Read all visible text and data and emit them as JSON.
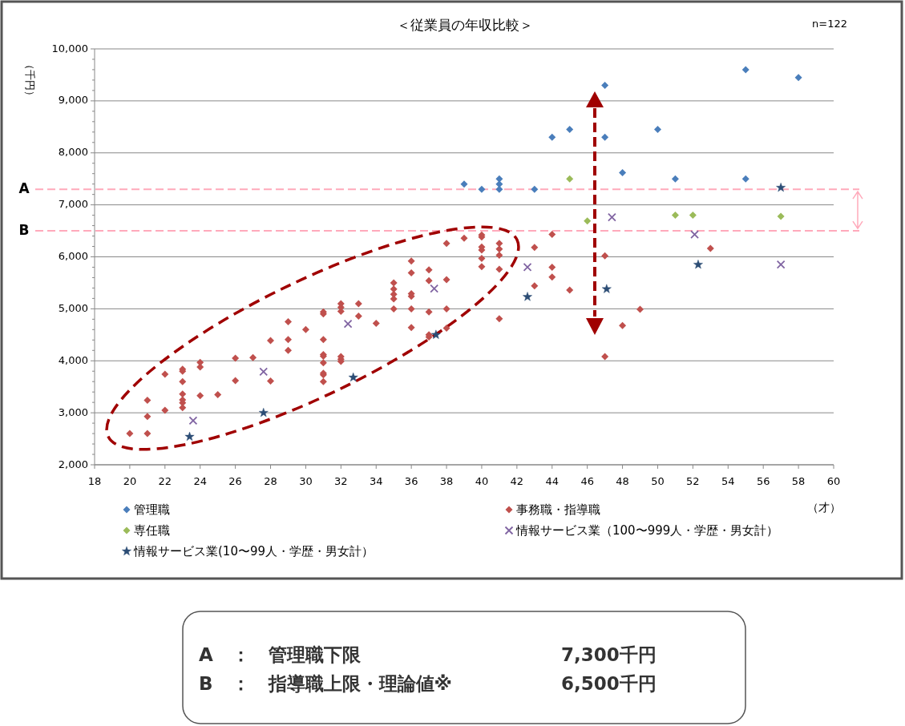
{
  "chart_data": {
    "type": "scatter",
    "title": "＜従業員の年収比較＞",
    "xlabel": "（才）",
    "ylabel": "（千円）",
    "annotations": [
      "n=122",
      "A　：　管理職下限",
      "7,300千円",
      "B　：　指導職上限・理論値※",
      "6,500千円"
    ],
    "xlim": [
      18,
      60
    ],
    "ylim": [
      2000,
      10000
    ],
    "xticks": [
      18,
      20,
      22,
      24,
      26,
      28,
      30,
      32,
      34,
      36,
      38,
      40,
      42,
      44,
      46,
      48,
      50,
      52,
      54,
      56,
      58,
      60
    ],
    "yticks": [
      {
        "value": 2000,
        "label": "2,000"
      },
      {
        "value": 3000,
        "label": "3,000"
      },
      {
        "value": 4000,
        "label": "4,000"
      },
      {
        "value": 5000,
        "label": "5,000"
      },
      {
        "value": 6000,
        "label": "6,000"
      },
      {
        "value": 7000,
        "label": "7,000"
      },
      {
        "value": 8000,
        "label": "8,000"
      },
      {
        "value": 9000,
        "label": "9,000"
      },
      {
        "value": 10000,
        "label": "10,000"
      }
    ],
    "grid": "y",
    "legend": "bottom",
    "ref_lines": [
      {
        "axis": "y",
        "value": 7300,
        "label": "A",
        "color": "#ffaabb",
        "line_style": "dashed"
      },
      {
        "axis": "y",
        "value": 6500,
        "label": "B",
        "color": "#ffaabb",
        "line_style": "dashed"
      }
    ],
    "series": [
      {
        "name": "管理職",
        "color": "#4a7ebb",
        "marker": "diamond",
        "x": [
          39,
          40,
          41,
          41,
          41,
          43,
          44,
          45,
          47,
          47,
          48,
          50,
          51,
          55,
          55,
          58
        ],
        "values": [
          7400,
          7300,
          7500,
          7400,
          7300,
          7300,
          8300,
          8450,
          9300,
          8300,
          7620,
          8450,
          7500,
          9600,
          7500,
          9450
        ]
      },
      {
        "name": "事務職・指導職",
        "color": "#c0504d",
        "marker": "diamond",
        "x": [
          20,
          21,
          21,
          21,
          22,
          22,
          23,
          23,
          23,
          23,
          23,
          23,
          23,
          24,
          24,
          24,
          25,
          26,
          26,
          27,
          28,
          28,
          29,
          29,
          29,
          30,
          31,
          31,
          31,
          31,
          31,
          31,
          31,
          31,
          31,
          32,
          32,
          32,
          32,
          32,
          32,
          33,
          33,
          34,
          35,
          35,
          35,
          35,
          35,
          36,
          36,
          36,
          36,
          36,
          36,
          37,
          37,
          37,
          37,
          37,
          38,
          38,
          38,
          38,
          39,
          40,
          40,
          40,
          40,
          40,
          40,
          41,
          41,
          41,
          41,
          41,
          43,
          43,
          44,
          44,
          44,
          45,
          47,
          47,
          48,
          49,
          53
        ],
        "values": [
          2600,
          2600,
          2930,
          3240,
          3050,
          3740,
          3100,
          3190,
          3250,
          3360,
          3600,
          3800,
          3840,
          3330,
          3880,
          3970,
          3350,
          3620,
          4050,
          4060,
          3610,
          4390,
          4200,
          4410,
          4750,
          4600,
          3600,
          3730,
          3760,
          3960,
          4090,
          4120,
          4410,
          4900,
          4940,
          3990,
          4030,
          4080,
          4950,
          5030,
          5100,
          4860,
          5100,
          4720,
          5000,
          5190,
          5280,
          5380,
          5500,
          4640,
          5000,
          5240,
          5290,
          5690,
          5920,
          4460,
          4500,
          4940,
          5540,
          5750,
          4630,
          5000,
          5560,
          6260,
          6360,
          5810,
          5970,
          6130,
          6190,
          6380,
          6420,
          4810,
          5760,
          6030,
          6150,
          6260,
          5440,
          6180,
          5610,
          5800,
          6430,
          5360,
          4080,
          6020,
          4680,
          4990,
          6160
        ]
      },
      {
        "name": "専任職",
        "color": "#9bbb59",
        "marker": "diamond",
        "x": [
          45,
          46,
          51,
          52,
          57
        ],
        "values": [
          7500,
          6690,
          6800,
          6800,
          6780
        ]
      },
      {
        "name": "情報サービス業（100〜999人・学歴・男女計）",
        "color": "#8064a2",
        "marker": "cross",
        "x": [
          23.6,
          27.6,
          32.4,
          37.3,
          42.6,
          47.4,
          52.1,
          57
        ],
        "values": [
          2850,
          3790,
          4710,
          5390,
          5800,
          6760,
          6430,
          5850
        ]
      },
      {
        "name": "情報サービス業(10〜99人・学歴・男女計）",
        "color": "#2c4d75",
        "marker": "star",
        "x": [
          23.4,
          27.6,
          32.7,
          37.4,
          42.6,
          47.1,
          52.3,
          57
        ],
        "values": [
          2540,
          3000,
          3680,
          4500,
          5230,
          5380,
          5850,
          7330
        ]
      }
    ]
  }
}
